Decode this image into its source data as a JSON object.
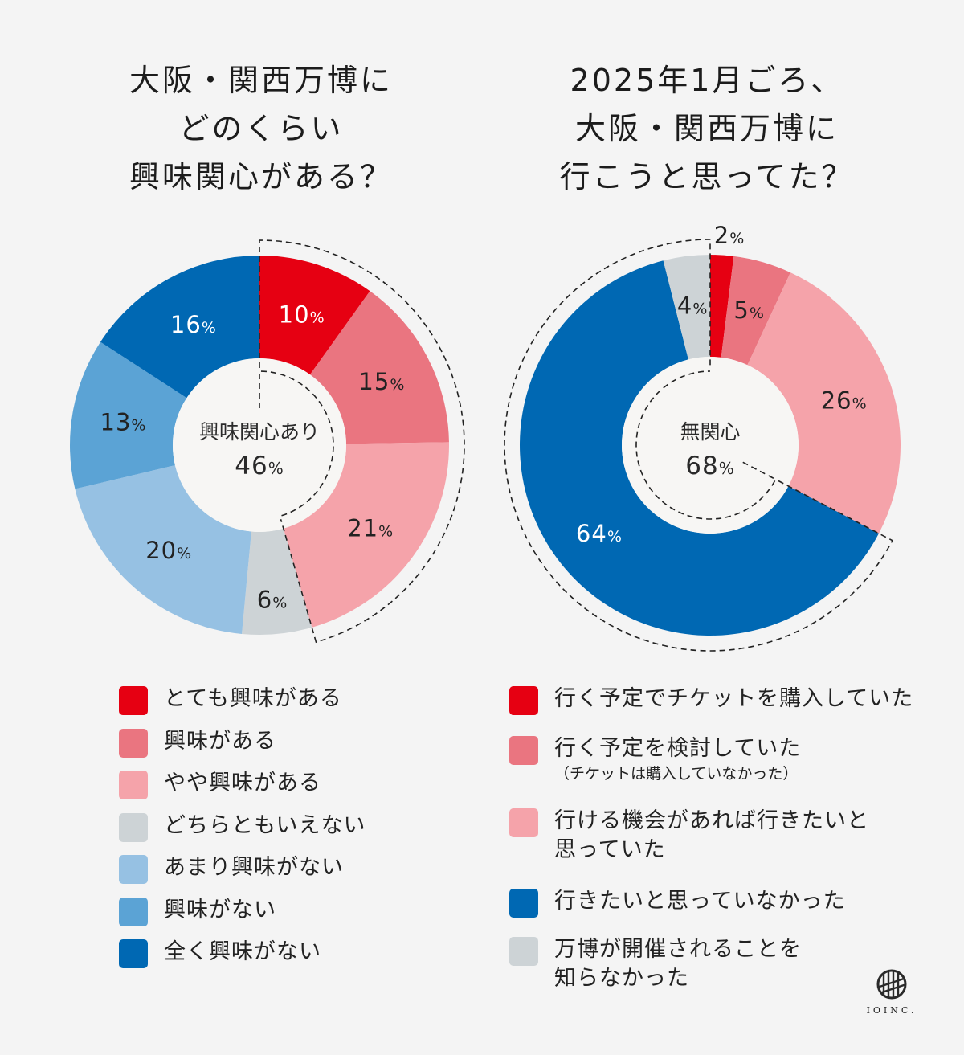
{
  "colors": {
    "background": "#f4f4f4",
    "red": "#e60012",
    "red_mid": "#ea7580",
    "pink": "#f5a3aa",
    "gray": "#cdd3d6",
    "blue_light": "#96c1e3",
    "blue_mid": "#5ba3d5",
    "blue_dark": "#0068b3",
    "center": "#f7f6f4"
  },
  "chart_data": [
    {
      "type": "pie",
      "variant": "donut",
      "title": "大阪・関西万博に どのくらい 興味関心がある？",
      "title_lines": [
        "大阪・関西万博に",
        "どのくらい",
        "興味関心がある？"
      ],
      "categories": [
        "とても興味がある",
        "興味がある",
        "やや興味がある",
        "どちらともいえない",
        "あまり興味がない",
        "興味がない",
        "全く興味がない"
      ],
      "values": [
        10,
        15,
        21,
        6,
        20,
        13,
        16
      ],
      "value_labels": [
        "10",
        "15",
        "21",
        "6",
        "20",
        "13",
        "16"
      ],
      "unit": "%",
      "label_colors": [
        "#ffffff",
        "#222222",
        "#222222",
        "#222222",
        "#222222",
        "#222222",
        "#ffffff"
      ],
      "series_colors": [
        "#e60012",
        "#ea7580",
        "#f5a3aa",
        "#cdd3d6",
        "#96c1e3",
        "#5ba3d5",
        "#0068b3"
      ],
      "center_label": "興味関心あり",
      "center_value": "46",
      "highlight_range": [
        0,
        3
      ],
      "legend": "bottom",
      "start_angle": "top, clockwise"
    },
    {
      "type": "pie",
      "variant": "donut",
      "title": "2025年1月ごろ、 大阪・関西万博に 行こうと思ってた？",
      "title_lines": [
        "2025年1月ごろ、",
        "大阪・関西万博に",
        "行こうと思ってた？"
      ],
      "categories": [
        "行く予定でチケットを購入していた",
        "行く予定を検討していた（チケットは購入していなかった）",
        "行ける機会があれば行きたいと思っていた",
        "行きたいと思っていなかった",
        "万博が開催されることを知らなかった"
      ],
      "values": [
        2,
        5,
        26,
        64,
        4
      ],
      "value_labels": [
        "2",
        "5",
        "26",
        "64",
        "4"
      ],
      "unit": "%",
      "label_colors": [
        "#222222",
        "#222222",
        "#222222",
        "#ffffff",
        "#222222"
      ],
      "series_colors": [
        "#e60012",
        "#ea7580",
        "#f5a3aa",
        "#0068b3",
        "#cdd3d6"
      ],
      "center_label": "無関心",
      "center_value": "68",
      "highlight_range": [
        3,
        5
      ],
      "legend": "bottom",
      "start_angle": "top, clockwise"
    }
  ],
  "legend_left": [
    {
      "label": "とても興味がある"
    },
    {
      "label": "興味がある"
    },
    {
      "label": "やや興味がある"
    },
    {
      "label": "どちらともいえない"
    },
    {
      "label": "あまり興味がない"
    },
    {
      "label": "興味がない"
    },
    {
      "label": "全く興味がない"
    }
  ],
  "legend_right": [
    {
      "lines": [
        "行く予定でチケットを購入していた"
      ],
      "sub": ""
    },
    {
      "lines": [
        "行く予定を検討していた"
      ],
      "sub": "（チケットは購入していなかった）"
    },
    {
      "lines": [
        "行ける機会があれば行きたいと",
        "思っていた"
      ],
      "sub": ""
    },
    {
      "lines": [
        "行きたいと思っていなかった"
      ],
      "sub": ""
    },
    {
      "lines": [
        "万博が開催されることを",
        "知らなかった"
      ],
      "sub": ""
    }
  ],
  "logo": {
    "text": "IOINC."
  }
}
